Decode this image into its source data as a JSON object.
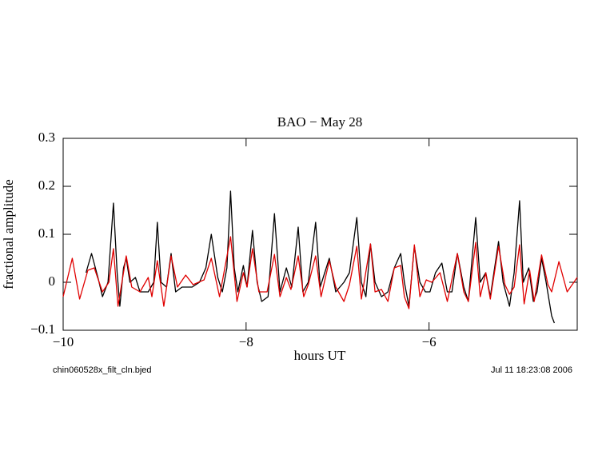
{
  "chart_data": {
    "type": "line",
    "title": "BAO − May 28",
    "x_label": "hours UT",
    "y_label": "fractional amplitude",
    "footer_left": "chin060528x_filt_cln.bjed",
    "footer_right": "Jul 11 18:23:08 2006",
    "xlim": [
      -10,
      -4.38
    ],
    "ylim": [
      -0.1,
      0.3
    ],
    "xticks": [
      {
        "value": -10,
        "label": "−10"
      },
      {
        "value": -8,
        "label": "−8"
      },
      {
        "value": -6,
        "label": "−6"
      }
    ],
    "yticks": [
      {
        "value": -0.1,
        "label": "−0.1"
      },
      0,
      0.1,
      0.2,
      0.3
    ],
    "series": [
      {
        "color": "#000000",
        "x": [
          -9.75,
          -9.69,
          -9.62,
          -9.57,
          -9.51,
          -9.45,
          -9.41,
          -9.38,
          -9.34,
          -9.31,
          -9.27,
          -9.21,
          -9.16,
          -9.07,
          -9.01,
          -8.97,
          -8.93,
          -8.87,
          -8.82,
          -8.77,
          -8.7,
          -8.59,
          -8.51,
          -8.44,
          -8.38,
          -8.31,
          -8.26,
          -8.21,
          -8.17,
          -8.13,
          -8.09,
          -8.03,
          -7.99,
          -7.93,
          -7.88,
          -7.83,
          -7.76,
          -7.69,
          -7.63,
          -7.56,
          -7.5,
          -7.43,
          -7.38,
          -7.32,
          -7.24,
          -7.19,
          -7.09,
          -7.02,
          -6.93,
          -6.87,
          -6.79,
          -6.74,
          -6.69,
          -6.64,
          -6.59,
          -6.52,
          -6.45,
          -6.38,
          -6.31,
          -6.27,
          -6.22,
          -6.16,
          -6.1,
          -6.04,
          -5.99,
          -5.93,
          -5.86,
          -5.8,
          -5.75,
          -5.69,
          -5.62,
          -5.57,
          -5.49,
          -5.44,
          -5.38,
          -5.33,
          -5.24,
          -5.19,
          -5.12,
          -5.07,
          -5.01,
          -4.97,
          -4.91,
          -4.86,
          -4.82,
          -4.77,
          -4.72,
          -4.66,
          -4.63
        ],
        "values": [
          0.02,
          0.06,
          0.01,
          -0.03,
          0.0,
          0.165,
          0.02,
          -0.05,
          0.03,
          0.05,
          0.0,
          0.01,
          -0.02,
          -0.02,
          0.0,
          0.125,
          0.0,
          -0.01,
          0.06,
          -0.02,
          -0.01,
          -0.01,
          0.0,
          0.03,
          0.1,
          0.01,
          -0.02,
          0.03,
          0.19,
          0.03,
          -0.02,
          0.035,
          -0.01,
          0.108,
          0.0,
          -0.04,
          -0.03,
          0.143,
          -0.02,
          0.03,
          -0.01,
          0.115,
          -0.02,
          0.0,
          0.125,
          -0.01,
          0.05,
          -0.02,
          0.0,
          0.02,
          0.135,
          0.0,
          -0.03,
          0.08,
          0.0,
          -0.03,
          -0.02,
          0.03,
          0.06,
          0.0,
          -0.05,
          0.075,
          0.0,
          -0.02,
          -0.02,
          0.02,
          0.04,
          -0.02,
          -0.02,
          0.06,
          -0.01,
          -0.04,
          0.135,
          0.0,
          0.02,
          -0.03,
          0.085,
          0.0,
          -0.05,
          0.02,
          0.17,
          0.0,
          0.03,
          -0.04,
          -0.02,
          0.05,
          0.0,
          -0.07,
          -0.085
        ]
      },
      {
        "color": "#e00000",
        "x": [
          -10,
          -9.9,
          -9.82,
          -9.73,
          -9.66,
          -9.57,
          -9.5,
          -9.45,
          -9.4,
          -9.31,
          -9.25,
          -9.16,
          -9.07,
          -9.03,
          -8.97,
          -8.9,
          -8.82,
          -8.75,
          -8.66,
          -8.58,
          -8.46,
          -8.38,
          -8.29,
          -8.17,
          -8.1,
          -8.03,
          -7.99,
          -7.93,
          -7.86,
          -7.77,
          -7.69,
          -7.63,
          -7.56,
          -7.51,
          -7.43,
          -7.37,
          -7.32,
          -7.24,
          -7.18,
          -7.09,
          -7.02,
          -6.93,
          -6.87,
          -6.79,
          -6.74,
          -6.64,
          -6.59,
          -6.52,
          -6.45,
          -6.38,
          -6.31,
          -6.27,
          -6.22,
          -6.16,
          -6.1,
          -6.03,
          -5.97,
          -5.88,
          -5.8,
          -5.69,
          -5.62,
          -5.57,
          -5.49,
          -5.44,
          -5.38,
          -5.33,
          -5.24,
          -5.17,
          -5.12,
          -5.07,
          -5.01,
          -4.96,
          -4.9,
          -4.85,
          -4.77,
          -4.7,
          -4.66,
          -4.58,
          -4.49,
          -4.38
        ],
        "values": [
          -0.03,
          0.05,
          -0.035,
          0.025,
          0.03,
          -0.02,
          0.0,
          0.07,
          -0.05,
          0.055,
          -0.01,
          -0.02,
          0.01,
          -0.03,
          0.045,
          -0.05,
          0.055,
          -0.01,
          0.015,
          -0.005,
          0.005,
          0.05,
          -0.03,
          0.095,
          -0.04,
          0.02,
          -0.01,
          0.07,
          -0.02,
          -0.02,
          0.058,
          -0.03,
          0.01,
          -0.015,
          0.055,
          -0.03,
          -0.005,
          0.055,
          -0.03,
          0.045,
          -0.01,
          -0.04,
          -0.005,
          0.075,
          -0.035,
          0.08,
          -0.02,
          -0.015,
          -0.04,
          0.03,
          0.035,
          -0.03,
          -0.055,
          0.078,
          -0.03,
          0.005,
          0.0,
          0.02,
          -0.04,
          0.06,
          -0.02,
          -0.04,
          0.083,
          -0.03,
          0.02,
          -0.035,
          0.075,
          -0.005,
          -0.025,
          -0.01,
          0.078,
          -0.045,
          0.025,
          -0.04,
          0.057,
          -0.005,
          -0.02,
          0.043,
          -0.02,
          0.01
        ]
      }
    ]
  }
}
